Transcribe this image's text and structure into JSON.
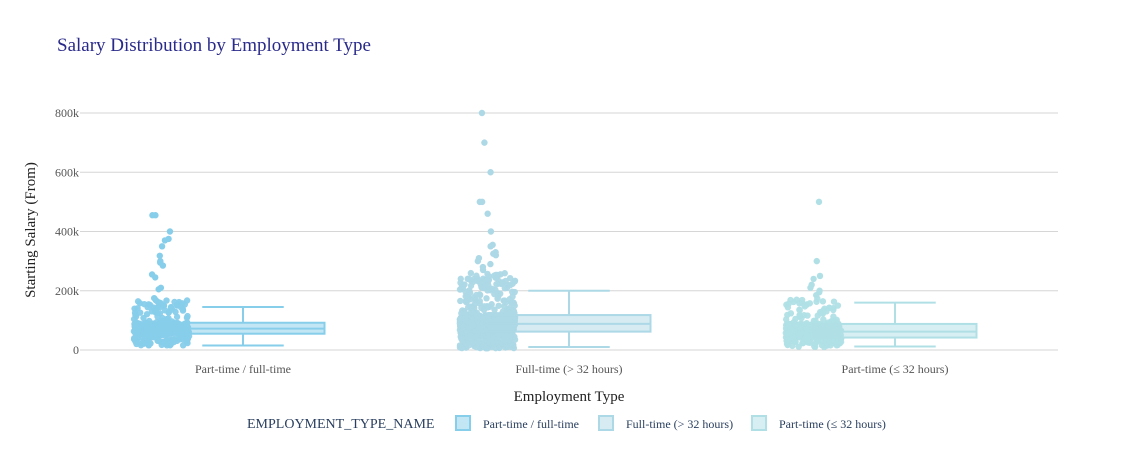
{
  "chart_data": {
    "type": "box",
    "title": "Salary Distribution by Employment Type",
    "xlabel": "Employment Type",
    "ylabel": "Starting Salary (From)",
    "ylim": [
      0,
      800000
    ],
    "y_ticks": [
      {
        "value": 0,
        "label": "0"
      },
      {
        "value": 200000,
        "label": "200k"
      },
      {
        "value": 400000,
        "label": "400k"
      },
      {
        "value": 600000,
        "label": "600k"
      },
      {
        "value": 800000,
        "label": "800k"
      }
    ],
    "grid": true,
    "legend": {
      "title": "EMPLOYMENT_TYPE_NAME",
      "placement": "bottom"
    },
    "categories": [
      "Part-time / full-time",
      "Full-time (> 32 hours)",
      "Part-time (≤ 32 hours)"
    ],
    "series": [
      {
        "name": "Part-time / full-time",
        "color": "#87CEEB",
        "box": {
          "lowerfence": 15000,
          "q1": 55000,
          "median": 72000,
          "q3": 92000,
          "upperfence": 145000
        },
        "outliers": [
          455000,
          455000,
          400000,
          375000,
          370000,
          350000,
          318000,
          300000,
          295000,
          285000,
          255000,
          245000,
          210000,
          205000,
          175000,
          168000,
          160000
        ],
        "points_range": [
          15000,
          170000
        ]
      },
      {
        "name": "Full-time (> 32 hours)",
        "color": "#ADD8E6",
        "box": {
          "lowerfence": 10000,
          "q1": 62000,
          "median": 88000,
          "q3": 118000,
          "upperfence": 200000
        },
        "outliers": [
          800000,
          700000,
          600000,
          500000,
          500000,
          460000,
          400000,
          355000,
          350000,
          330000,
          325000,
          320000,
          310000,
          300000,
          290000,
          280000,
          270000
        ],
        "points_range": [
          5000,
          260000
        ]
      },
      {
        "name": "Part-time (≤ 32 hours)",
        "color": "#B0E0E6",
        "box": {
          "lowerfence": 12000,
          "q1": 42000,
          "median": 62000,
          "q3": 88000,
          "upperfence": 160000
        },
        "outliers": [
          500000,
          300000,
          250000,
          240000,
          220000,
          210000,
          200000,
          195000,
          185000
        ],
        "points_range": [
          10000,
          180000
        ]
      }
    ]
  }
}
